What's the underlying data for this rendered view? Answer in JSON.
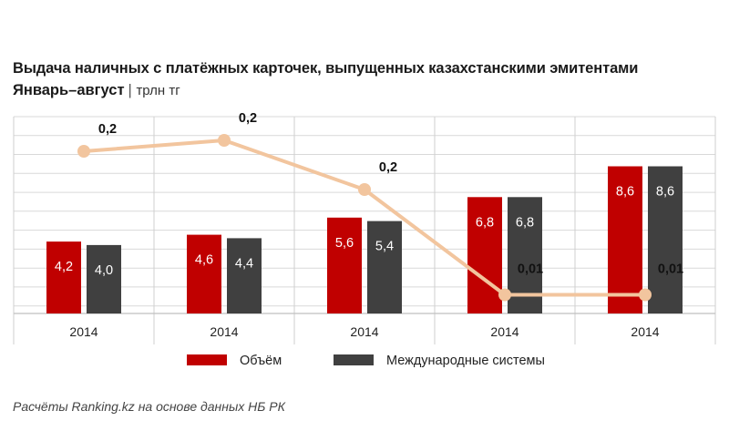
{
  "chart_data": {
    "type": "bar",
    "title": "Выдача наличных с платёжных карточек, выпущенных казахстанскими эмитентами",
    "subtitle": "Январь–август",
    "subtitle_separator": "|",
    "unit": "трлн тг",
    "categories": [
      "2014",
      "2014",
      "2014",
      "2014",
      "2014"
    ],
    "series": [
      {
        "name": "Объём",
        "type": "bar",
        "color": "#c00000",
        "values": [
          4.2,
          4.6,
          5.6,
          6.8,
          8.6
        ],
        "labels": [
          "4,2",
          "4,6",
          "5,6",
          "6,8",
          "8,6"
        ]
      },
      {
        "name": "Международные системы",
        "type": "bar",
        "color": "#404040",
        "values": [
          4.0,
          4.4,
          5.4,
          6.8,
          8.6
        ],
        "labels": [
          "4,0",
          "4,4",
          "5,4",
          "6,8",
          "8,6"
        ]
      },
      {
        "name": "",
        "type": "line",
        "color": "#f2c59e",
        "values": [
          0.2,
          0.2,
          0.2,
          0.01,
          0.01
        ],
        "labels": [
          "0,2",
          "0,2",
          "0,2",
          "0,01",
          "0,01"
        ]
      }
    ],
    "ylim": [
      0,
      11.5
    ],
    "gridlines": true,
    "legend_position": "bottom"
  },
  "source": "Расчёты Ranking.kz на основе данных НБ РК"
}
